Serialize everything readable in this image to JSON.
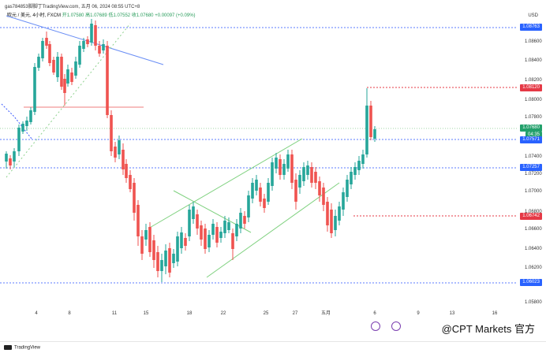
{
  "header": {
    "text": "gas784853脚脚丁TradingView.com, 五月 06, 2024 08:55 UTC+8"
  },
  "info": {
    "symbol": "欧元 / 美元, 4小时, FXCM",
    "open": "开1.07580",
    "high": "高1.07689",
    "low": "低1.07552",
    "close": "收1.07680",
    "change": "+0.00097 (+0.09%)"
  },
  "axis": {
    "currency": "USD",
    "y_ticks": [
      "1.08600",
      "1.08400",
      "1.08200",
      "1.08000",
      "1.07800",
      "1.07400",
      "1.07200",
      "1.07000",
      "1.06800",
      "1.06600",
      "1.06400",
      "1.06200",
      "1.05800"
    ],
    "x_ticks": [
      "4",
      "8",
      "11",
      "15",
      "18",
      "22",
      "25",
      "27",
      "五月",
      "6",
      "9",
      "13",
      "16"
    ]
  },
  "price_tags": [
    {
      "label": "1.08763",
      "color": "#2962ff"
    },
    {
      "label": "1.08120",
      "color": "#e53946"
    },
    {
      "label": "1.07680",
      "color": "#22a06b"
    },
    {
      "label": "04:35",
      "color": "#22a06b"
    },
    {
      "label": "1.07571",
      "color": "#2962ff"
    },
    {
      "label": "1.07257",
      "color": "#2962ff"
    },
    {
      "label": "1.06742",
      "color": "#e53946"
    },
    {
      "label": "1.06023",
      "color": "#2962ff"
    }
  ],
  "footer": {
    "logo_text": "TradingView"
  },
  "watermark": {
    "text": "@CPT Markets 官方"
  },
  "colors": {
    "up": "#26a69a",
    "down": "#ef5350",
    "level_line": "#5b7bff",
    "red_level": "#e53946",
    "channel": "#7fd17f"
  }
}
